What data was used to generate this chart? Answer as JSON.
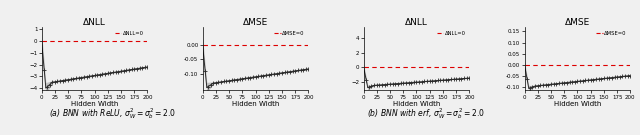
{
  "panels": [
    {
      "title": "ΔNLL",
      "ylim": [
        -4.2,
        1.2
      ],
      "yticks": [
        -4,
        -3,
        -2,
        -1,
        0,
        1
      ],
      "hline_label": "ΔNLL=0",
      "spike_x": 8,
      "spike_y": -4.0,
      "recover_y": -3.5,
      "end_y": -2.2,
      "type": "NLL"
    },
    {
      "title": "ΔMSE",
      "ylim": [
        -0.155,
        0.06
      ],
      "yticks": [
        -0.1,
        -0.05,
        0.0
      ],
      "hline_label": "ΔMSE=0",
      "spike_x": 8,
      "spike_y": -0.145,
      "recover_y": -0.13,
      "end_y": -0.082,
      "type": "MSE"
    },
    {
      "title": "ΔNLL",
      "ylim": [
        -3.2,
        5.5
      ],
      "yticks": [
        -2,
        0,
        2,
        4
      ],
      "hline_label": "ΔNLL=0",
      "spike_x": 8,
      "spike_y": -2.8,
      "recover_y": -2.5,
      "end_y": -1.5,
      "type": "NLL"
    },
    {
      "title": "ΔMSE",
      "ylim": [
        -0.115,
        0.17
      ],
      "yticks": [
        -0.1,
        -0.05,
        0.0,
        0.05,
        0.1,
        0.15
      ],
      "hline_label": "ΔMSE=0",
      "spike_x": 8,
      "spike_y": -0.105,
      "recover_y": -0.095,
      "end_y": -0.048,
      "type": "MSE"
    }
  ],
  "xlabel": "Hidden Width",
  "x_max": 200,
  "x_ticks": [
    0,
    25,
    50,
    75,
    100,
    125,
    150,
    175,
    200
  ],
  "caption_left": "(a) BNN with ReLU, $\\sigma^2_W = \\sigma^2_b = 2.0$",
  "caption_right": "(b) BNN with erf, $\\sigma^2_W = \\sigma^2_b = 2.0$",
  "line_color": "#2a2a2a",
  "fill_color": "#999999",
  "hline_color": "#dd0000",
  "bg_color": "#f0f0f0"
}
